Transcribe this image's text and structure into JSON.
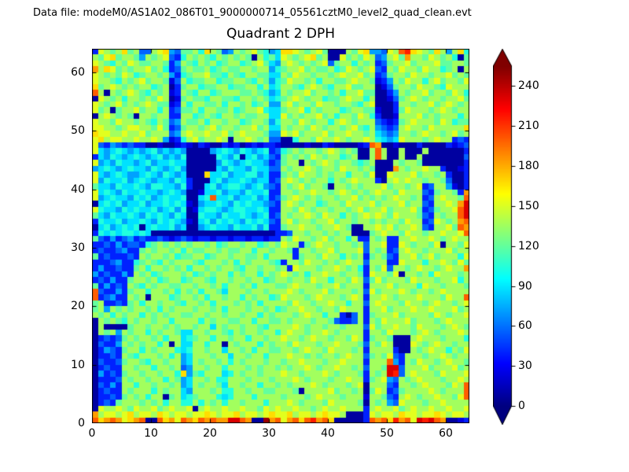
{
  "header": {
    "data_file_line": "Data file: modeM0/AS1A02_086T01_9000000714_05561cztM0_level2_quad_clean.evt"
  },
  "chart_data": {
    "type": "heatmap",
    "title": "Quadrant 2 DPH",
    "colormap": "jet",
    "xlim": [
      0,
      64
    ],
    "ylim": [
      0,
      64
    ],
    "x_ticks": [
      0,
      10,
      20,
      30,
      40,
      50,
      60
    ],
    "y_ticks": [
      0,
      10,
      20,
      30,
      40,
      50,
      60
    ],
    "grid": false,
    "colorbar": {
      "position": "right",
      "ticks": [
        0,
        30,
        60,
        90,
        120,
        150,
        180,
        210,
        240
      ],
      "vmin": 0,
      "vmax": 255,
      "extend": "both"
    },
    "grid_encoding": {
      "note": "64x64 DPH counts, rows listed top (y=63) to bottom (y=0); each char is hex 0-f, value = hex*16+8 counts",
      "levels": 16,
      "value_per_level": 16
    },
    "grid_rows_top_to_bottom": [
      "29878a783389a437786a873487897645aa987897000879a44398cda987a848a6",
      "879a78874878932687876878787086759 8789a780097879834897b8879878607",
      "9876879877887248768786788678975489878789378868782378897888977887",
      "b8a9787889786237877867877887884678897877867987893287988798867808",
      "9878798678878426788977687688775587988788789889782378879887889787",
      "9887687897887138677886778876874679887868877898871248798868978879",
      "a789878788678027886778867788685688768987688977880137887988769888",
      "c808789876878128768867888778764587889788786889770024878897887986",
      "098786887879801787768877688787567898788677898868 0013789878878897",
      "987897878987712868877868878678448978879887887689 0002887889789878",
      "978078897886823778688778678896557889687888678877 1002798887898788",
      "089878708878822886787688787788559787889786887986 2001888978788868",
      "988798878768734877868878867887468879878868987888 3212789888798677",
      "998878998879723788789788788978558788798788789768 432389887988888a",
      "a99889889788834898898897898887449897888978898878 5434887898878978",
      "9a8998898898412689788980889878330068879889878898 6545988878988232",
      "93243232200100121021002120121221000010021000012cb001000200002123",
      "954565454564545400004565465456236787887898787008c800800080000002",
      "254654565456454600000654605645327878798788678008c800800800000003",
      "9454655456455655000004654565542378808789878876780008788700000002",
      "45654565546545640000054655465533878898788798878 7000b878898820012",
      "9545654456546545000a5564556645227879887878868879 0098889788782002",
      "946556456545546520005645565455238987878868789888 2089898878873002",
      "755465565466554620056456654564328789788708878788 8978878923884102",
      "956546556554565400155645546556228878898878987878 988798883278872b",
      "94565546564565560056c55645564523789878788788 9787878988782389887c",
      "056564556455656510455654656554328987886788798889 78889788328898be",
      "965546565564564601566545665565228879878878878978 89788897237889ce",
      "754655654656546500655465565456238788987988687898 98798887328788ce",
      "265564556546565410564656546565328978878897887887 87887988239878bc",
      "056456560565564500456554655646227889887889870088 98978898328897cb",
      "265656656500000000000000000000022388788787880007 898879887889889c",
      "732423423223212321221221221221228798878978868228 7822889889878988",
      "223242332678787878878678878867879882789887887838 8922987887908879",
      "232234227878878687788787788688788728878897888938 7823898878889788",
      "723222328788786778867887887786888827887988687827 8732889789788869",
      "222342267876878887688878687888762887988787898838 8822988868898797",
      "242232278688787868878788768878878298887889878628 793887898878988b",
      "423224287867888786787886878868789878688988788729 8879088786988878",
      "232422788786788678876887887886788788798868879837 9788879888788968",
      "724232876878877887887868878688877898887889788828 8897888698878887",
      "c322427886887868786887588878878889878889788878397888987887898888",
      "c2342287808886788786887886878867988878988878982889878889888 7988c",
      "782232786887887688786888787868888798878898868838 9888798878988789",
      "784878788786878887887868887887867889887887988828 8978889889888978",
      "878687886878788778878878878868788878988688203827 8889788887987889",
      "087876878878868888687887788688778788878873223828 7988897888789888",
      "080000788788787887885878878876888898788788788839 7889887988878987",
      "087848788687887558878876878878868988788987888828 8798887898788898",
      "023237878878688567886887886887889887898878879827 8870008988878886",
      "032248787886808558868808788868788798887889888738 7980009878988788",
      "024327886878886568878858878688778878988798887828 8882008789886879",
      "022328768887868458887885887886888988787887898837 8793288878898788",
      "032237887688788458788786878887887889888788988828 88c4287988789887",
      "023228878868878348878868887878878788987889887838 87ee388897888978",
      "042327887887886a47688856878878889887888987888728 78ed389888798889",
      "022238788788687458878668887888788898788878898827 8943878988878898",
      "032428868878878458788758878868878788898788878908 883288789888798c",
      "023228788868788548887866887887788870888897887807 982378888987888c",
      "022327878688078567888656888688887888789888788818 873289878898879c",
      "023278887878688668687868878886888987888798888708 7843988878898888",
      "098898798897898890898898898879898898878988988828 9889789889889889",
      "b89989a8998a9899899a9899a89989a99a89989a998000298998a99899a98998",
      "cabcb9abc00cab9cbacbcbbeecb00fbc9bcacdbca000002cbcadbc9edecb0012"
    ]
  }
}
